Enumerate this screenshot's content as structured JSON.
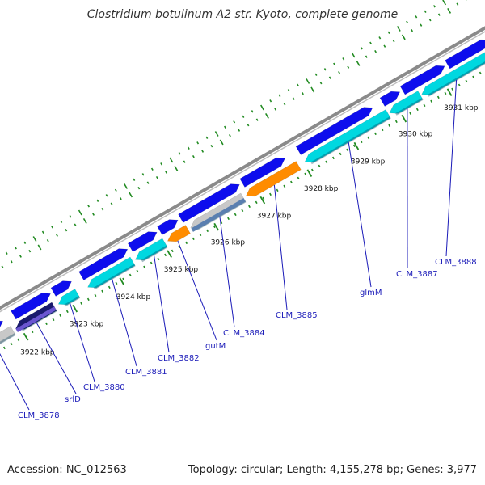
{
  "title": "Clostridium botulinum A2 str. Kyoto, complete genome",
  "footer": {
    "accession": "Accession: NC_012563",
    "summary": "Topology: circular; Length: 4,155,278 bp; Genes: 3,977"
  },
  "colors": {
    "backbone": "#8a8a8a",
    "tick": "#228b22",
    "cds_forward": "#0d0ded",
    "cds_reverse": "#00d8e0",
    "orange_feature": "#ff8c00",
    "gray_feature": "#c8c8c8",
    "navy_feature": "#1a1a6e",
    "steel_feature": "#5a7fb0",
    "label": "#1a1ab8"
  },
  "position_ticks": [
    "3922 kbp",
    "3923 kbp",
    "3924 kbp",
    "3925 kbp",
    "3926 kbp",
    "3927 kbp",
    "3928 kbp",
    "3929 kbp",
    "3930 kbp",
    "3931 kbp"
  ],
  "gene_labels": [
    "CLM_3878",
    "srlD",
    "CLM_3880",
    "CLM_3881",
    "CLM_3882",
    "gutM",
    "CLM_3884",
    "CLM_3885",
    "glmM",
    "CLM_3887",
    "CLM_3888"
  ]
}
